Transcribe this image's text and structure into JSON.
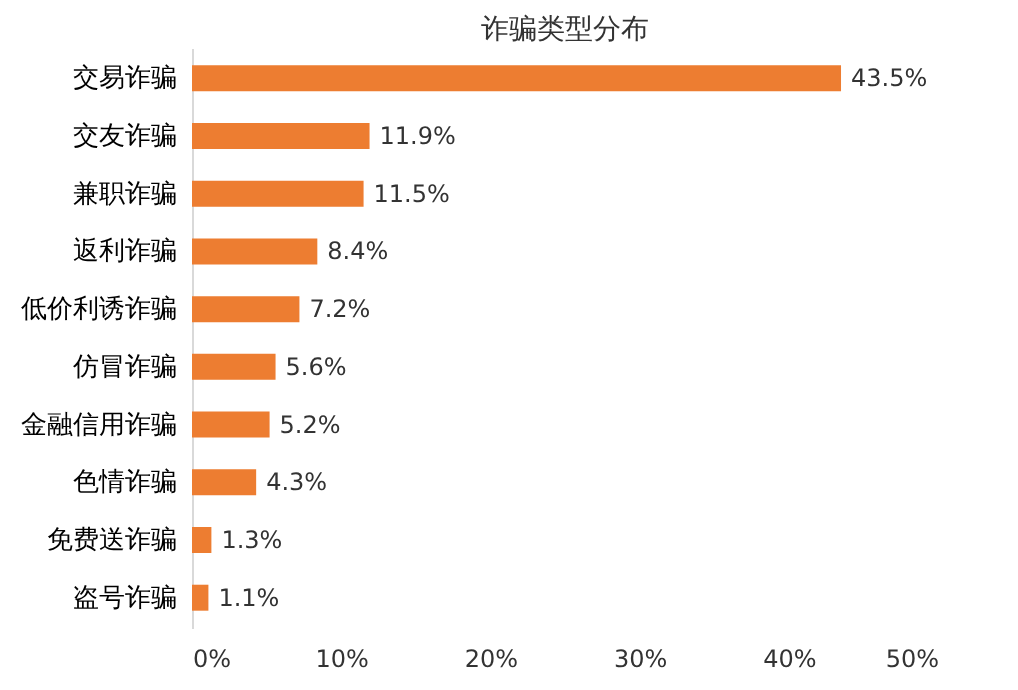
{
  "chart_data": {
    "type": "bar",
    "orientation": "horizontal",
    "title": "诈骗类型分布",
    "categories": [
      "交易诈骗",
      "交友诈骗",
      "兼职诈骗",
      "返利诈骗",
      "低价利诱诈骗",
      "仿冒诈骗",
      "金融信用诈骗",
      "色情诈骗",
      "免费送诈骗",
      "盗号诈骗"
    ],
    "values": [
      43.5,
      11.9,
      11.5,
      8.4,
      7.2,
      5.6,
      5.2,
      4.3,
      1.3,
      1.1
    ],
    "value_labels": [
      "43.5%",
      "11.9%",
      "11.5%",
      "8.4%",
      "7.2%",
      "5.6%",
      "5.2%",
      "4.3%",
      "1.3%",
      "1.1%"
    ],
    "color": "#ed7d31",
    "xlim": [
      0,
      50
    ],
    "xticks": [
      {
        "value": 0,
        "label": "0%"
      },
      {
        "value": 10,
        "label": "10%"
      },
      {
        "value": 20,
        "label": "20%"
      },
      {
        "value": 30,
        "label": "30%"
      },
      {
        "value": 40,
        "label": "40%"
      },
      {
        "value": 50,
        "label": "50%"
      }
    ],
    "grid": false
  }
}
